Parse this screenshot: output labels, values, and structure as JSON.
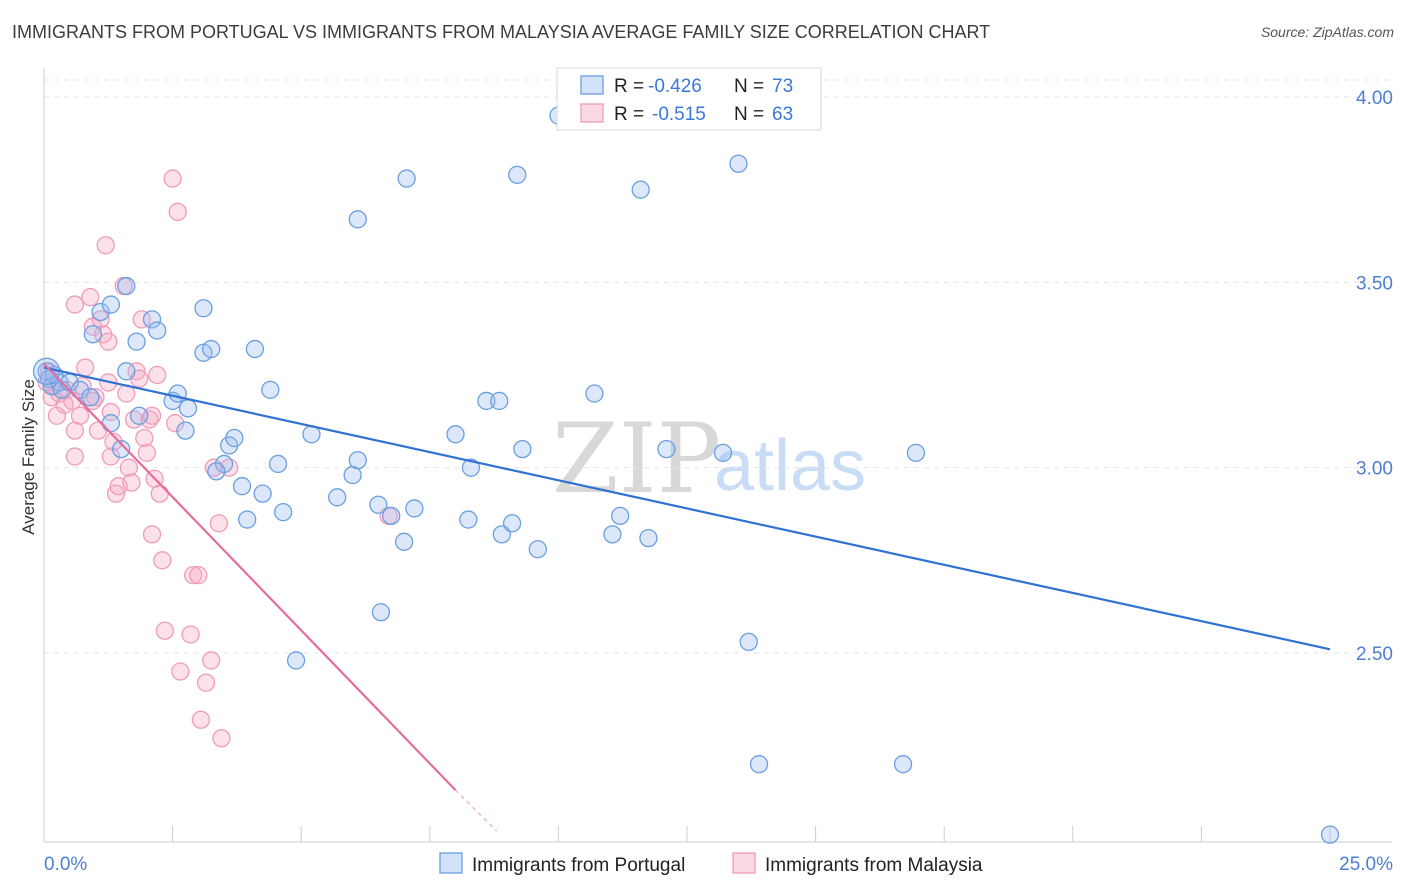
{
  "title": "IMMIGRANTS FROM PORTUGAL VS IMMIGRANTS FROM MALAYSIA AVERAGE FAMILY SIZE CORRELATION CHART",
  "source": "Source: ZipAtlas.com",
  "watermark": {
    "zip": "ZIP",
    "atlas": "atlas"
  },
  "colors": {
    "blue": "#6a9fe0",
    "blue_line": "#2f72d4",
    "pink": "#ef9cb8",
    "pink_line": "#e46d9b",
    "axis_label": "#4d7fd0"
  },
  "legend": {
    "r_label": "R = ",
    "n_label": "N = ",
    "portugal": {
      "r": "-0.426",
      "n": "73"
    },
    "malaysia": {
      "r": "-0.515",
      "n": "63"
    }
  },
  "chart_data": {
    "type": "scatter",
    "title": "IMMIGRANTS FROM PORTUGAL VS IMMIGRANTS FROM MALAYSIA AVERAGE FAMILY SIZE CORRELATION CHART",
    "xlabel": "",
    "ylabel": "Average Family Size",
    "xlim": [
      0,
      25
    ],
    "ylim": [
      2.0,
      4.08
    ],
    "x_tick_labels": [
      "0.0%",
      "25.0%"
    ],
    "y_ticks": [
      2.5,
      3.0,
      3.5,
      4.0
    ],
    "y_tick_labels": [
      "2.50",
      "3.00",
      "3.50",
      "4.00"
    ],
    "grid": "horizontal dashed",
    "legend_position": "top-center",
    "series": [
      {
        "name": "Immigrants from Portugal",
        "color": "#6a9fe0",
        "trend": {
          "x0": 0.0,
          "y0": 3.27,
          "x1": 25.0,
          "y1": 2.51
        },
        "points": [
          [
            0.05,
            3.26
          ],
          [
            0.1,
            3.24
          ],
          [
            0.15,
            3.22
          ],
          [
            0.2,
            3.25
          ],
          [
            0.3,
            3.23
          ],
          [
            0.35,
            3.21
          ],
          [
            0.5,
            3.23
          ],
          [
            0.7,
            3.21
          ],
          [
            0.9,
            3.19
          ],
          [
            0.95,
            3.36
          ],
          [
            1.1,
            3.42
          ],
          [
            1.3,
            3.44
          ],
          [
            1.6,
            3.49
          ],
          [
            1.8,
            3.34
          ],
          [
            2.1,
            3.4
          ],
          [
            2.2,
            3.37
          ],
          [
            1.6,
            3.26
          ],
          [
            1.3,
            3.12
          ],
          [
            1.5,
            3.05
          ],
          [
            1.85,
            3.14
          ],
          [
            2.5,
            3.18
          ],
          [
            2.6,
            3.2
          ],
          [
            2.8,
            3.16
          ],
          [
            2.75,
            3.1
          ],
          [
            3.1,
            3.43
          ],
          [
            3.1,
            3.31
          ],
          [
            3.25,
            3.32
          ],
          [
            4.1,
            3.32
          ],
          [
            4.4,
            3.21
          ],
          [
            3.6,
            3.06
          ],
          [
            3.7,
            3.08
          ],
          [
            3.5,
            3.01
          ],
          [
            3.35,
            2.99
          ],
          [
            3.85,
            2.95
          ],
          [
            3.95,
            2.86
          ],
          [
            4.25,
            2.93
          ],
          [
            4.55,
            3.01
          ],
          [
            4.65,
            2.88
          ],
          [
            5.2,
            3.09
          ],
          [
            6.1,
            3.67
          ],
          [
            5.7,
            2.92
          ],
          [
            6.0,
            2.98
          ],
          [
            6.1,
            3.02
          ],
          [
            6.5,
            2.9
          ],
          [
            6.75,
            2.87
          ],
          [
            6.55,
            2.61
          ],
          [
            7.0,
            2.8
          ],
          [
            7.2,
            2.89
          ],
          [
            7.05,
            3.78
          ],
          [
            8.0,
            3.09
          ],
          [
            8.25,
            2.86
          ],
          [
            8.3,
            3.0
          ],
          [
            8.6,
            3.18
          ],
          [
            8.85,
            3.18
          ],
          [
            8.9,
            2.82
          ],
          [
            9.1,
            2.85
          ],
          [
            9.2,
            3.79
          ],
          [
            9.3,
            3.05
          ],
          [
            9.6,
            2.78
          ],
          [
            10.0,
            3.95
          ],
          [
            10.7,
            3.2
          ],
          [
            11.05,
            2.82
          ],
          [
            11.2,
            2.87
          ],
          [
            11.75,
            2.81
          ],
          [
            11.6,
            3.75
          ],
          [
            12.1,
            3.05
          ],
          [
            13.2,
            3.04
          ],
          [
            13.5,
            3.82
          ],
          [
            13.7,
            2.53
          ],
          [
            13.9,
            2.2
          ],
          [
            16.7,
            2.2
          ],
          [
            16.95,
            3.04
          ],
          [
            4.9,
            2.48
          ],
          [
            25.0,
            2.01
          ]
        ]
      },
      {
        "name": "Immigrants from Malaysia",
        "color": "#ef9cb8",
        "trend": {
          "x0": 0.0,
          "y0": 3.28,
          "x1": 8.0,
          "y1": 2.13,
          "dash_to_x": 8.8,
          "dash_to_y": 2.02
        },
        "points": [
          [
            0.05,
            3.23
          ],
          [
            0.1,
            3.26
          ],
          [
            0.15,
            3.19
          ],
          [
            0.2,
            3.22
          ],
          [
            0.25,
            3.14
          ],
          [
            0.3,
            3.2
          ],
          [
            0.4,
            3.17
          ],
          [
            0.45,
            3.21
          ],
          [
            0.55,
            3.18
          ],
          [
            0.6,
            3.44
          ],
          [
            0.6,
            3.03
          ],
          [
            0.6,
            3.1
          ],
          [
            0.7,
            3.14
          ],
          [
            0.75,
            3.22
          ],
          [
            0.8,
            3.27
          ],
          [
            0.9,
            3.46
          ],
          [
            0.95,
            3.38
          ],
          [
            0.95,
            3.18
          ],
          [
            1.0,
            3.19
          ],
          [
            1.05,
            3.1
          ],
          [
            1.1,
            3.4
          ],
          [
            1.15,
            3.36
          ],
          [
            1.2,
            3.6
          ],
          [
            1.25,
            3.34
          ],
          [
            1.3,
            3.15
          ],
          [
            1.3,
            3.03
          ],
          [
            1.35,
            3.07
          ],
          [
            1.4,
            2.93
          ],
          [
            1.45,
            2.95
          ],
          [
            1.55,
            3.49
          ],
          [
            1.6,
            3.2
          ],
          [
            1.65,
            3.0
          ],
          [
            1.7,
            2.96
          ],
          [
            1.75,
            3.13
          ],
          [
            1.8,
            3.26
          ],
          [
            1.85,
            3.24
          ],
          [
            1.9,
            3.4
          ],
          [
            1.95,
            3.08
          ],
          [
            2.0,
            3.04
          ],
          [
            2.05,
            3.13
          ],
          [
            2.1,
            3.14
          ],
          [
            2.1,
            2.82
          ],
          [
            2.15,
            2.97
          ],
          [
            2.2,
            3.25
          ],
          [
            2.25,
            2.93
          ],
          [
            2.3,
            2.75
          ],
          [
            2.35,
            2.56
          ],
          [
            2.5,
            3.78
          ],
          [
            2.6,
            3.69
          ],
          [
            2.65,
            2.45
          ],
          [
            2.85,
            2.55
          ],
          [
            2.9,
            2.71
          ],
          [
            3.0,
            2.71
          ],
          [
            3.05,
            2.32
          ],
          [
            3.15,
            2.42
          ],
          [
            3.25,
            2.48
          ],
          [
            3.3,
            3.0
          ],
          [
            3.4,
            2.85
          ],
          [
            3.45,
            2.27
          ],
          [
            3.6,
            3.0
          ],
          [
            2.55,
            3.12
          ],
          [
            1.25,
            3.23
          ],
          [
            6.7,
            2.87
          ]
        ]
      }
    ]
  }
}
